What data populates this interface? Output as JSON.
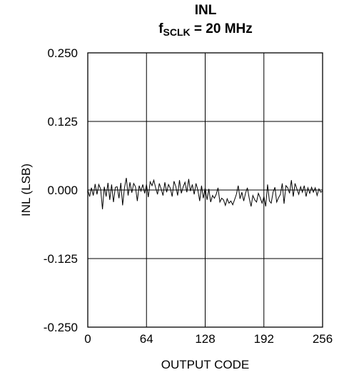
{
  "chart_data": {
    "type": "line",
    "title": "INL",
    "subtitle": {
      "prefix": "f",
      "subscript": "SCLK",
      "suffix": " = 20 MHz"
    },
    "xlabel": "OUTPUT CODE",
    "ylabel": "INL (LSB)",
    "xlim": [
      0,
      256
    ],
    "ylim": [
      -0.25,
      0.25
    ],
    "xticks": [
      0,
      64,
      128,
      192,
      256
    ],
    "yticks": [
      0.25,
      0.125,
      0,
      -0.125,
      -0.25
    ],
    "xtick_labels": [
      "0",
      "64",
      "128",
      "192",
      "256"
    ],
    "ytick_labels": [
      "0.250",
      "0.125",
      "0.000",
      "-0.125",
      "-0.250"
    ],
    "grid": true,
    "series": [
      {
        "x": [
          0,
          2,
          4,
          6,
          8,
          10,
          12,
          14,
          16,
          18,
          20,
          22,
          24,
          26,
          28,
          30,
          32,
          34,
          36,
          38,
          40,
          42,
          44,
          46,
          48,
          50,
          52,
          54,
          56,
          58,
          60,
          62,
          64,
          66,
          68,
          70,
          72,
          74,
          76,
          78,
          80,
          82,
          84,
          86,
          88,
          90,
          92,
          94,
          96,
          98,
          100,
          102,
          104,
          106,
          108,
          110,
          112,
          114,
          116,
          118,
          120,
          122,
          124,
          126,
          128,
          130,
          132,
          134,
          136,
          138,
          140,
          142,
          144,
          146,
          148,
          150,
          152,
          154,
          156,
          158,
          160,
          162,
          164,
          166,
          168,
          170,
          172,
          174,
          176,
          178,
          180,
          182,
          184,
          186,
          188,
          190,
          192,
          194,
          196,
          198,
          200,
          202,
          204,
          206,
          208,
          210,
          212,
          214,
          216,
          218,
          220,
          222,
          224,
          226,
          228,
          230,
          232,
          234,
          236,
          238,
          240,
          242,
          244,
          246,
          248,
          250,
          252,
          254,
          256
        ],
        "y": [
          0.0,
          -0.012,
          0.004,
          -0.01,
          0.011,
          -0.008,
          0.01,
          0.002,
          -0.035,
          0.006,
          -0.012,
          0.013,
          -0.018,
          0.01,
          -0.022,
          0.005,
          0.006,
          -0.015,
          0.013,
          -0.028,
          0.004,
          0.022,
          -0.01,
          0.014,
          -0.005,
          0.012,
          0.006,
          -0.02,
          0.008,
          -0.002,
          0.01,
          -0.006,
          0.01,
          -0.013,
          0.015,
          0.008,
          0.018,
          0.004,
          -0.008,
          0.012,
          0.002,
          -0.01,
          0.014,
          -0.004,
          0.01,
          0.003,
          -0.012,
          0.016,
          0.006,
          -0.01,
          0.018,
          -0.006,
          0.006,
          0.014,
          -0.004,
          0.02,
          -0.002,
          0.01,
          -0.008,
          0.012,
          0.0,
          -0.02,
          0.008,
          -0.015,
          0.004,
          -0.018,
          0.002,
          -0.022,
          -0.01,
          -0.015,
          -0.008,
          0.004,
          -0.022,
          -0.015,
          -0.018,
          -0.028,
          -0.016,
          -0.024,
          -0.02,
          -0.027,
          -0.018,
          -0.008,
          0.008,
          -0.016,
          -0.004,
          -0.02,
          -0.006,
          0.004,
          -0.015,
          -0.03,
          -0.01,
          -0.018,
          -0.022,
          -0.006,
          -0.014,
          -0.024,
          -0.012,
          -0.03,
          0.01,
          -0.02,
          -0.024,
          -0.004,
          0.005,
          -0.022,
          -0.014,
          -0.008,
          0.012,
          -0.025,
          0.008,
          0.004,
          -0.006,
          0.018,
          -0.012,
          0.012,
          0.002,
          -0.008,
          0.006,
          -0.004,
          0.008,
          -0.012,
          0.004,
          -0.006,
          0.005,
          -0.004,
          0.004,
          -0.01,
          0.002,
          -0.004,
          -0.002
        ]
      }
    ]
  }
}
